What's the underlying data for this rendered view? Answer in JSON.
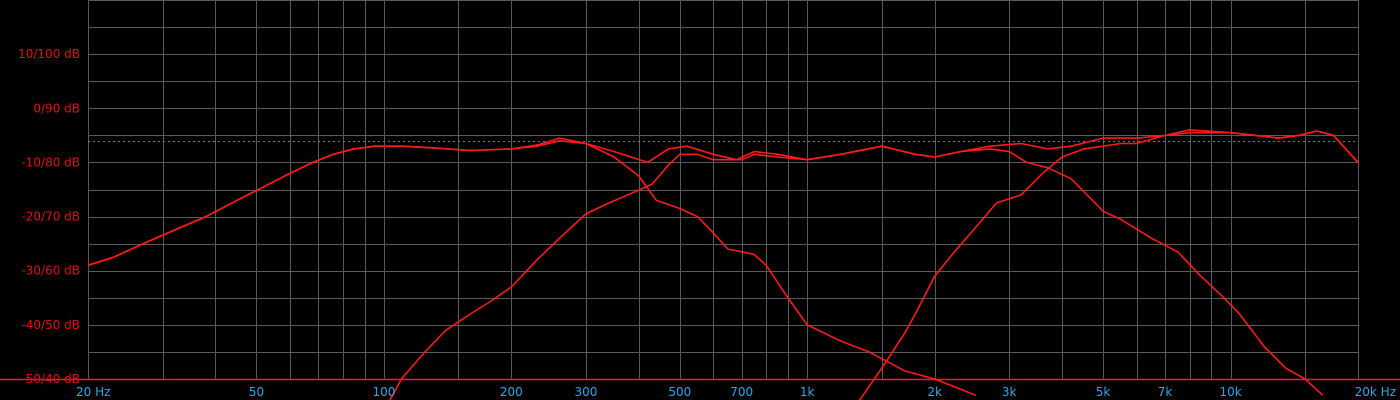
{
  "chart_data": {
    "type": "line",
    "title": "",
    "xlabel": "",
    "ylabel": "",
    "x_scale": "log",
    "xlim": [
      20,
      20000
    ],
    "ylim": [
      -50,
      20
    ],
    "grid": true,
    "reference_level": -6,
    "colors": {
      "background": "#000000",
      "grid": "#5a5a5a",
      "curve": "#ff1a1a",
      "reference": "#4a8a9a",
      "y_tick_text": "#e01010",
      "x_tick_text": "#2aa8e8"
    },
    "y_ticks": [
      {
        "value": 10,
        "label": "10/100 dB"
      },
      {
        "value": 0,
        "label": "0/90 dB"
      },
      {
        "value": -10,
        "label": "-10/80 dB"
      },
      {
        "value": -20,
        "label": "-20/70 dB"
      },
      {
        "value": -30,
        "label": "-30/60 dB"
      },
      {
        "value": -40,
        "label": "-40/50 dB"
      },
      {
        "value": -50,
        "label": "-50/40 dB"
      }
    ],
    "x_ticks": [
      {
        "value": 20,
        "label": "20 Hz"
      },
      {
        "value": 50,
        "label": "50"
      },
      {
        "value": 100,
        "label": "100"
      },
      {
        "value": 200,
        "label": "200"
      },
      {
        "value": 300,
        "label": "300"
      },
      {
        "value": 500,
        "label": "500"
      },
      {
        "value": 700,
        "label": "700"
      },
      {
        "value": 1000,
        "label": "1k"
      },
      {
        "value": 2000,
        "label": "2k"
      },
      {
        "value": 3000,
        "label": "3k"
      },
      {
        "value": 5000,
        "label": "5k"
      },
      {
        "value": 7000,
        "label": "7k"
      },
      {
        "value": 10000,
        "label": "10k"
      },
      {
        "value": 20000,
        "label": "20k Hz"
      }
    ],
    "x_minor_grid": [
      30,
      40,
      60,
      70,
      80,
      90,
      150,
      400,
      600,
      800,
      900,
      1500,
      4000,
      6000,
      8000,
      9000,
      15000
    ],
    "series": [
      {
        "x": [
          20,
          23,
          27,
          32,
          38,
          45,
          52,
          60,
          68,
          76,
          85,
          95,
          110,
          130,
          160,
          200,
          230,
          260,
          300,
          350,
          420,
          470,
          520,
          600,
          680,
          750,
          850,
          1000,
          1200,
          1500,
          1800,
          2000,
          2300,
          2700,
          3200,
          3700,
          4200,
          5000,
          6000,
          7000,
          8000,
          10000,
          11500,
          13000,
          14500,
          16000,
          17500,
          20000
        ],
        "y": [
          -29,
          -27.5,
          -25,
          -22.5,
          -20,
          -17,
          -14.5,
          -12,
          -10,
          -8.5,
          -7.5,
          -7,
          -7,
          -7.3,
          -7.8,
          -7.5,
          -7,
          -6,
          -6.5,
          -8,
          -10,
          -7.5,
          -7,
          -8.5,
          -9.5,
          -8,
          -8.5,
          -9.5,
          -8.5,
          -7,
          -8.5,
          -9,
          -8,
          -7,
          -6.5,
          -7.5,
          -7,
          -5.5,
          -5.5,
          -5,
          -4,
          -4.5,
          -5,
          -5.5,
          -5,
          -4.2,
          -5,
          -10
        ]
      },
      {
        "x": [
          20,
          23,
          27,
          32,
          38,
          45,
          52,
          60,
          68,
          76,
          85,
          95,
          110,
          130,
          160,
          200,
          230,
          260,
          300,
          350,
          400,
          440,
          500,
          550,
          600,
          650,
          700,
          750,
          800,
          900,
          1000,
          1200,
          1400,
          1700,
          2000,
          2500
        ],
        "y": [
          -29,
          -27.5,
          -25,
          -22.5,
          -20,
          -17,
          -14.5,
          -12,
          -10,
          -8.5,
          -7.5,
          -7,
          -7,
          -7.3,
          -7.8,
          -7.5,
          -6.8,
          -5.5,
          -6.5,
          -9,
          -12.5,
          -17,
          -18.5,
          -20,
          -23,
          -26,
          -26.5,
          -27,
          -29,
          -35,
          -40,
          -43,
          -45,
          -48.5,
          -50,
          -53
        ]
      },
      {
        "x": [
          100,
          110,
          125,
          140,
          160,
          180,
          200,
          230,
          260,
          300,
          340,
          390,
          430,
          470,
          500,
          550,
          600,
          650,
          700,
          750,
          850,
          1000,
          1200,
          1500,
          1800,
          2000,
          2300,
          2700,
          3000,
          3300,
          3700,
          4200,
          5000,
          5500,
          6500,
          7500,
          8500,
          9500,
          10500,
          12000,
          13500,
          15000,
          16500
        ],
        "y": [
          -56,
          -50,
          -45,
          -41,
          -38,
          -35.5,
          -33,
          -28,
          -24,
          -19.5,
          -17.5,
          -15.5,
          -14,
          -10.5,
          -8.5,
          -8.5,
          -9.5,
          -9.5,
          -9.5,
          -8.5,
          -9,
          -9.5,
          -8.5,
          -7,
          -8.5,
          -9,
          -8,
          -7.5,
          -8,
          -10,
          -11,
          -13,
          -19,
          -20.5,
          -24,
          -26.5,
          -31,
          -34.5,
          -38,
          -44,
          -48,
          -50,
          -53
        ]
      },
      {
        "x": [
          1300,
          1500,
          1700,
          1800,
          2000,
          2200,
          2500,
          2800,
          3200,
          3600,
          4000,
          4500,
          5000,
          5500,
          6000,
          7000,
          8000,
          10000,
          11500,
          13000,
          14500,
          16000,
          17500,
          20000
        ],
        "y": [
          -55,
          -48,
          -41.5,
          -38,
          -31,
          -27,
          -22,
          -17.5,
          -16,
          -12,
          -9,
          -7.5,
          -7,
          -6.5,
          -6.5,
          -5,
          -4.5,
          -4.5,
          -5,
          -5.5,
          -5,
          -4.2,
          -5,
          -10
        ]
      }
    ]
  }
}
